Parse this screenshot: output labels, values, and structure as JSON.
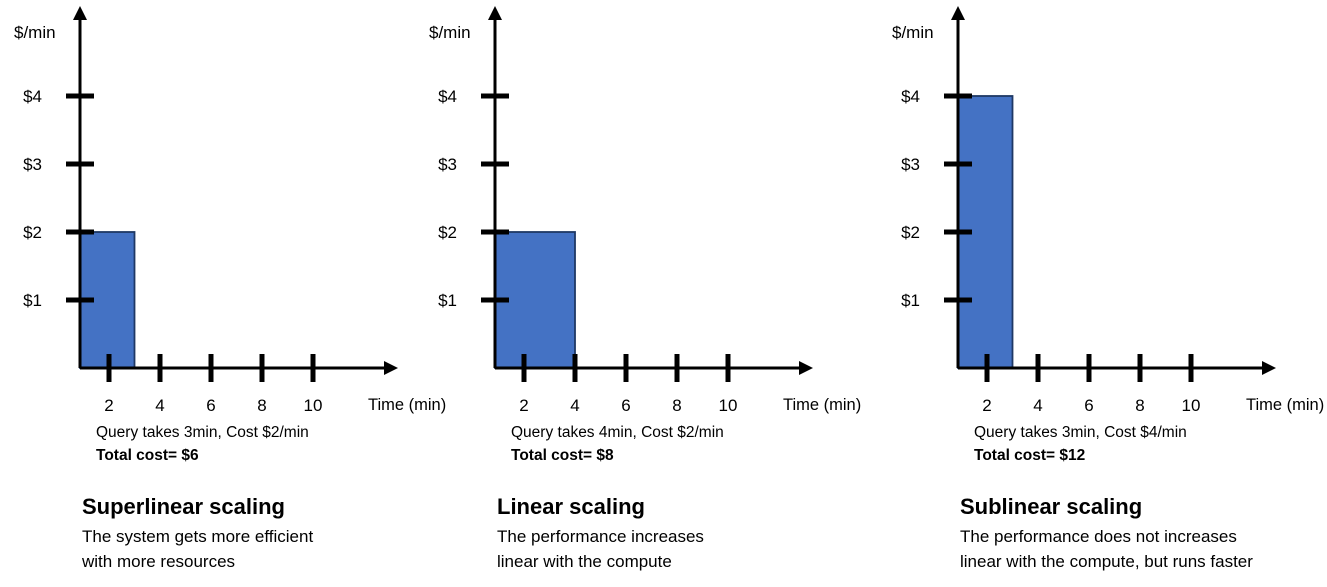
{
  "style": {
    "bar_fill": "#4472C4",
    "bar_stroke": "#1F3864",
    "axis_color": "#000000",
    "background": "#FFFFFF"
  },
  "chart_data": [
    {
      "type": "bar",
      "title": "Superlinear scaling",
      "description_lines": [
        "The system gets more efficient",
        "with more resources"
      ],
      "caption": "Query takes 3min, Cost $2/min",
      "total_line": "Total cost= $6",
      "query_duration_min": 3,
      "cost_per_min": 2,
      "total_cost_usd": 6,
      "xlabel": "Time (min)",
      "ylabel": "$/min",
      "x_tick_values": [
        2,
        4,
        6,
        8,
        10
      ],
      "x_tick_labels": [
        "2",
        "4",
        "6",
        "8",
        "10"
      ],
      "y_tick_values": [
        1,
        2,
        3,
        4
      ],
      "y_tick_labels": [
        "$1",
        "$2",
        "$3",
        "$4"
      ],
      "xlim": [
        0,
        12
      ],
      "ylim": [
        0,
        5.3
      ],
      "bars": [
        {
          "x_start": 0,
          "x_end": 3,
          "height": 2
        }
      ]
    },
    {
      "type": "bar",
      "title": "Linear scaling",
      "description_lines": [
        "The performance increases",
        "linear with the compute"
      ],
      "caption": "Query takes 4min, Cost $2/min",
      "total_line": "Total cost= $8",
      "query_duration_min": 4,
      "cost_per_min": 2,
      "total_cost_usd": 8,
      "xlabel": "Time (min)",
      "ylabel": "$/min",
      "x_tick_values": [
        2,
        4,
        6,
        8,
        10
      ],
      "x_tick_labels": [
        "2",
        "4",
        "6",
        "8",
        "10"
      ],
      "y_tick_values": [
        1,
        2,
        3,
        4
      ],
      "y_tick_labels": [
        "$1",
        "$2",
        "$3",
        "$4"
      ],
      "xlim": [
        0,
        12
      ],
      "ylim": [
        0,
        5.3
      ],
      "bars": [
        {
          "x_start": 0,
          "x_end": 4,
          "height": 2
        }
      ]
    },
    {
      "type": "bar",
      "title": "Sublinear scaling",
      "description_lines": [
        "The performance does not increases",
        "linear with the compute, but runs faster"
      ],
      "caption": "Query takes 3min, Cost $4/min",
      "total_line": "Total cost= $12",
      "query_duration_min": 3,
      "cost_per_min": 4,
      "total_cost_usd": 12,
      "xlabel": "Time (min)",
      "ylabel": "$/min",
      "x_tick_values": [
        2,
        4,
        6,
        8,
        10
      ],
      "x_tick_labels": [
        "2",
        "4",
        "6",
        "8",
        "10"
      ],
      "y_tick_values": [
        1,
        2,
        3,
        4
      ],
      "y_tick_labels": [
        "$1",
        "$2",
        "$3",
        "$4"
      ],
      "xlim": [
        0,
        12
      ],
      "ylim": [
        0,
        5.3
      ],
      "bars": [
        {
          "x_start": 0,
          "x_end": 3,
          "height": 4
        }
      ]
    }
  ]
}
